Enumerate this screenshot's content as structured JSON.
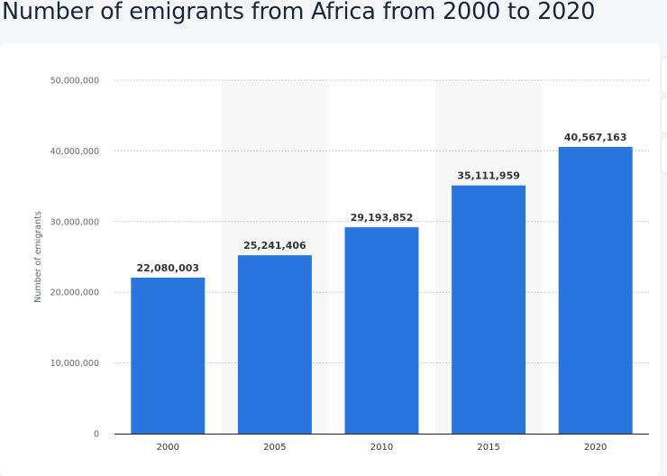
{
  "chart_data": {
    "type": "bar",
    "title": "Number of emigrants from Africa from 2000 to 2020",
    "xlabel": "",
    "ylabel": "Number of emigrants",
    "categories": [
      "2000",
      "2005",
      "2010",
      "2015",
      "2020"
    ],
    "values": [
      22080003,
      25241406,
      29193852,
      35111959,
      40567163
    ],
    "data_labels": [
      "22,080,003",
      "25,241,406",
      "29,193,852",
      "35,111,959",
      "40,567,163"
    ],
    "ylim": [
      0,
      50000000
    ],
    "yticks": [
      0,
      10000000,
      20000000,
      30000000,
      40000000,
      50000000
    ],
    "ytick_labels": [
      "0",
      "10,000,000",
      "20,000,000",
      "30,000,000",
      "40,000,000",
      "50,000,000"
    ],
    "grid": true,
    "bar_color": "#2876dd"
  }
}
